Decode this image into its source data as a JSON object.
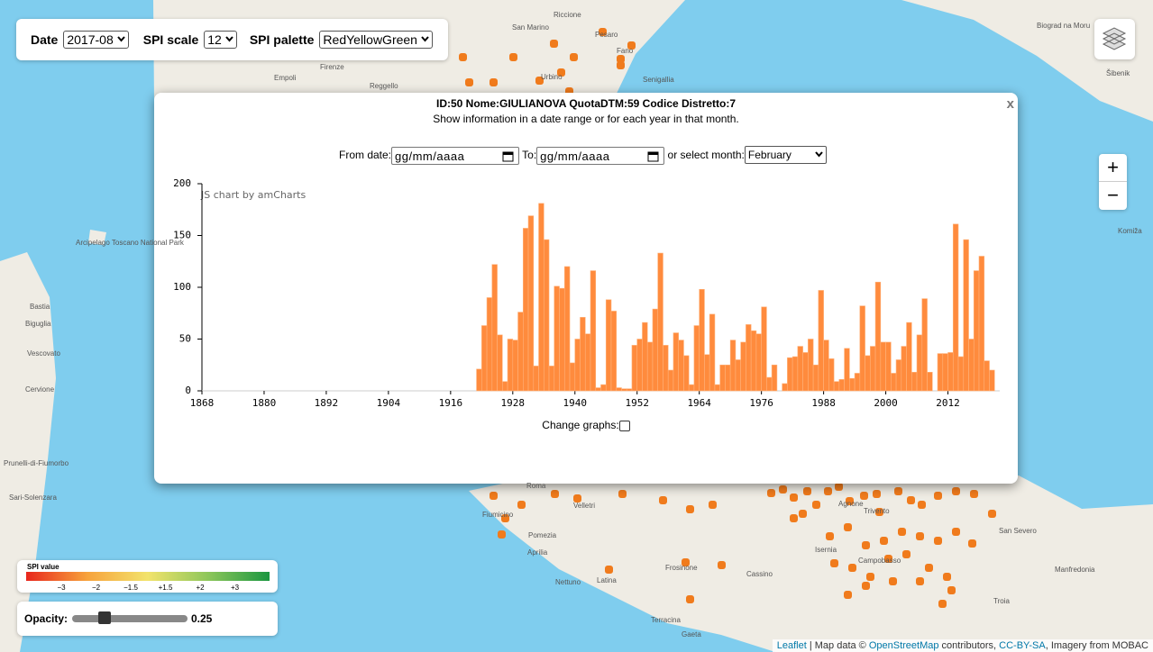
{
  "controls": {
    "date_label": "Date",
    "date_value": "2017-08",
    "scale_label": "SPI scale",
    "scale_value": "12",
    "palette_label": "SPI palette",
    "palette_value": "RedYellowGreen"
  },
  "zoom": {
    "in": "+",
    "out": "−"
  },
  "popup": {
    "close": "x",
    "title": "ID:50 Nome:GIULIANOVA QuotaDTM:59 Codice Distretto:7",
    "subtitle": "Show information in a date range or for each year in that month.",
    "from_label": "From date:",
    "date_placeholder": "gg/mm/aaaa",
    "to_label": "To:",
    "month_label": "or select month:",
    "month_value": "February",
    "credit": "JS chart by amCharts",
    "change_label": "Change graphs:"
  },
  "chart_data": {
    "type": "bar",
    "color": "#ff8b3d",
    "x": [
      1921,
      1922,
      1923,
      1924,
      1925,
      1926,
      1927,
      1928,
      1929,
      1930,
      1931,
      1932,
      1933,
      1934,
      1935,
      1936,
      1937,
      1938,
      1939,
      1940,
      1941,
      1942,
      1943,
      1944,
      1945,
      1946,
      1947,
      1948,
      1949,
      1950,
      1951,
      1952,
      1953,
      1954,
      1955,
      1956,
      1957,
      1958,
      1959,
      1960,
      1961,
      1962,
      1963,
      1964,
      1965,
      1966,
      1967,
      1968,
      1969,
      1970,
      1971,
      1972,
      1973,
      1974,
      1975,
      1976,
      1977,
      1978,
      1979,
      1980,
      1981,
      1982,
      1983,
      1984,
      1985,
      1986,
      1987,
      1988,
      1989,
      1990,
      1991,
      1992,
      1993,
      1994,
      1995,
      1996,
      1997,
      1998,
      1999,
      2000,
      2001,
      2002,
      2003,
      2004,
      2005,
      2006,
      2007,
      2008,
      2009,
      2010,
      2011,
      2012,
      2013,
      2014,
      2015,
      2016,
      2017,
      2018,
      2019,
      2020
    ],
    "values": [
      21,
      63,
      90,
      122,
      54,
      9,
      50,
      49,
      76,
      157,
      169,
      24,
      181,
      146,
      24,
      101,
      99,
      120,
      27,
      50,
      71,
      55,
      116,
      3,
      6,
      88,
      77,
      3,
      2,
      2,
      44,
      50,
      66,
      47,
      79,
      133,
      44,
      20,
      56,
      49,
      34,
      6,
      63,
      98,
      35,
      74,
      6,
      25,
      25,
      49,
      30,
      47,
      64,
      58,
      55,
      81,
      13,
      25,
      0,
      7,
      32,
      33,
      43,
      37,
      50,
      25,
      97,
      49,
      31,
      9,
      11,
      41,
      12,
      17,
      82,
      34,
      43,
      105,
      47,
      47,
      17,
      30,
      43,
      66,
      18,
      54,
      89,
      18,
      0,
      36,
      36,
      37,
      161,
      33,
      146,
      50,
      116,
      130,
      29,
      20
    ],
    "xlim": [
      1868,
      2022
    ],
    "xticks": [
      1868,
      1880,
      1892,
      1904,
      1916,
      1928,
      1940,
      1952,
      1964,
      1976,
      1988,
      2000,
      2012
    ],
    "ylim": [
      0,
      200
    ],
    "yticks": [
      0,
      50,
      100,
      150,
      200
    ]
  },
  "legend": {
    "title": "SPI value",
    "colors": [
      "#e8261c",
      "#f7a23b",
      "#f2e36b",
      "#8cc65a",
      "#1a9640"
    ],
    "ticks": [
      "−3",
      "−2",
      "−1.5",
      "+1.5",
      "+2",
      "+3"
    ]
  },
  "opacity": {
    "label": "Opacity:",
    "value": 0.25
  },
  "attribution": {
    "leaflet": "Leaflet",
    "map_data": " | Map data © ",
    "osm": "OpenStreetMap",
    "contributors": " contributors, ",
    "license": "CC-BY-SA",
    "imagery": ", Imagery from MOBAC"
  },
  "map_labels": [
    "San Marino",
    "Pesaro",
    "Riccione",
    "Fano",
    "Senigallia",
    "Urbino",
    "Firenze",
    "Empoli",
    "Reggello",
    "Šibenik",
    "Biograd na Moru",
    "Komiža",
    "Arcipelago Toscano National Park",
    "Bastia",
    "Biguglia",
    "Vescovato",
    "Cervione",
    "Prunelli-di-Fiumorbo",
    "Sari-Solenzara",
    "Roma",
    "Fiumicino",
    "Velletri",
    "Pomezia",
    "Aprilia",
    "Latina",
    "Nettuno",
    "Terracina",
    "Gaeta",
    "Frosinone",
    "Cassino",
    "Isernia",
    "Campobasso",
    "Agnone",
    "Trivento",
    "San Severo",
    "Manfredonia",
    "Troia"
  ]
}
